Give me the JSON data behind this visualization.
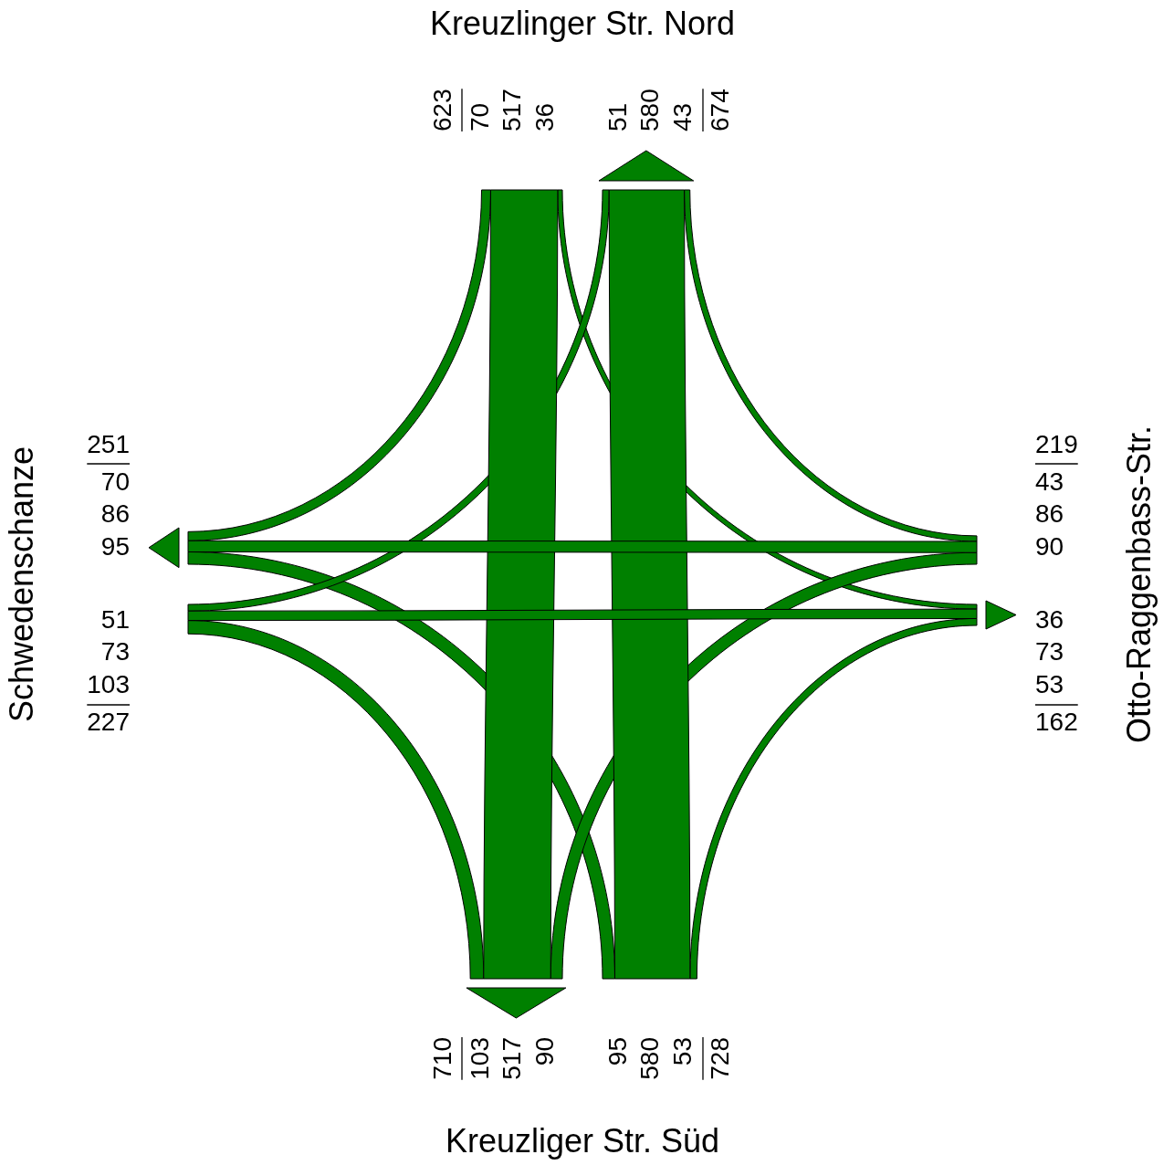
{
  "chart_data": {
    "type": "other",
    "categories": [
      "Kreuzlinger Str. Nord",
      "Kreuzliger Str. Süd",
      "Schwedenschanze",
      "Otto-Raggenbass-Str."
    ],
    "series": [
      {
        "color": "#008000",
        "values": [
          null,
          517,
          70,
          36
        ]
      },
      {
        "color": "#008000",
        "values": [
          580,
          null,
          95,
          53
        ]
      },
      {
        "color": "#008000",
        "values": [
          51,
          103,
          null,
          73
        ]
      },
      {
        "color": "#008000",
        "values": [
          43,
          90,
          86,
          null
        ]
      }
    ],
    "data_labels": true,
    "annotations": [
      "36",
      "517",
      "70",
      "623",
      "674",
      "95",
      "580",
      "53",
      "728",
      "710",
      "51",
      "73",
      "103",
      "227",
      "251",
      "90",
      "86",
      "43",
      "219",
      "162"
    ]
  }
}
